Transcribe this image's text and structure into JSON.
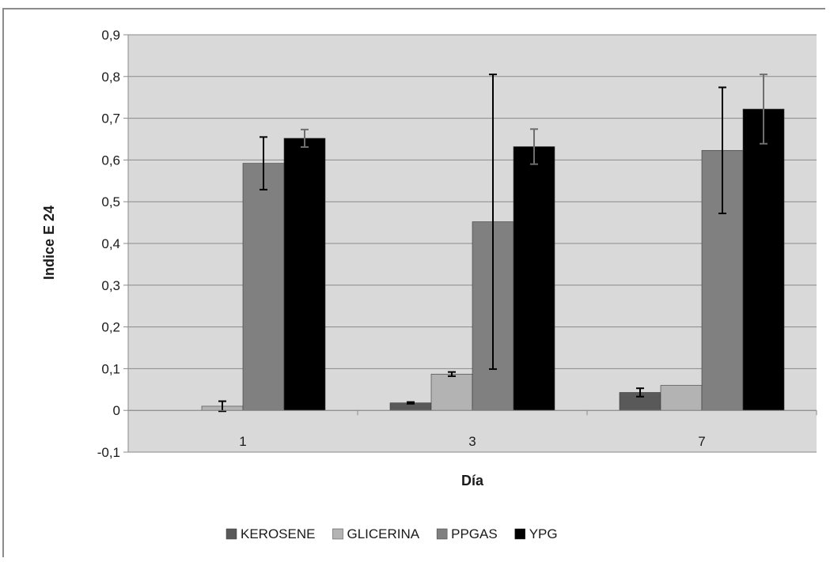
{
  "chart_data": {
    "type": "bar",
    "title": "",
    "xlabel": "Día",
    "ylabel": "Indice E 24",
    "categories": [
      "1",
      "3",
      "7"
    ],
    "ylim": [
      -0.1,
      0.9
    ],
    "yticks": [
      "-0,1",
      "0",
      "0,1",
      "0,2",
      "0,3",
      "0,4",
      "0,5",
      "0,6",
      "0,7",
      "0,8",
      "0,9"
    ],
    "ytick_values": [
      -0.1,
      0,
      0.1,
      0.2,
      0.3,
      0.4,
      0.5,
      0.6,
      0.7,
      0.8,
      0.9
    ],
    "grid": true,
    "legend_position": "bottom",
    "plot_background": "#d9d9d9",
    "series": [
      {
        "name": "KEROSENE",
        "color": "#595959",
        "error_color": "#000000",
        "values": [
          0,
          0.018,
          0.043
        ],
        "errors": [
          0,
          0.002,
          0.01
        ]
      },
      {
        "name": "GLICERINA",
        "color": "#b3b3b3",
        "error_color": "#000000",
        "values": [
          0.01,
          0.087,
          0.06
        ],
        "errors": [
          0.012,
          0.005,
          0
        ]
      },
      {
        "name": "PPGAS",
        "color": "#808080",
        "error_color": "#000000",
        "values": [
          0.592,
          0.452,
          0.623
        ],
        "errors": [
          0.063,
          0.353,
          0.151
        ]
      },
      {
        "name": "YPG",
        "color": "#000000",
        "error_color": "#6e6e6e",
        "values": [
          0.652,
          0.632,
          0.722
        ],
        "errors": [
          0.021,
          0.042,
          0.083
        ]
      }
    ]
  }
}
